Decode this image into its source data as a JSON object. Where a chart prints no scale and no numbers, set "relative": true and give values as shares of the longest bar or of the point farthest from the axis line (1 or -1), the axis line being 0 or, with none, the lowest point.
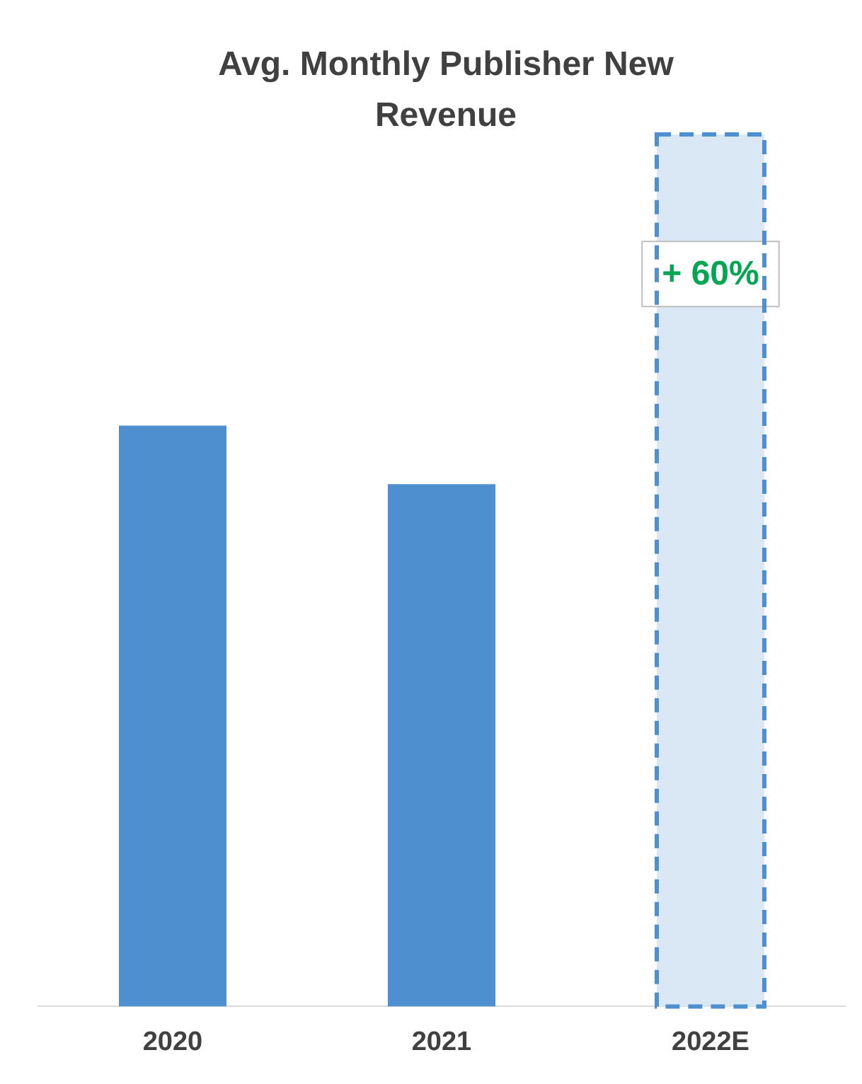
{
  "chart_data": {
    "type": "bar",
    "title": "Avg. Monthly Publisher New Revenue",
    "relative": true,
    "categories": [
      "2020",
      "2021",
      "2022E"
    ],
    "series": [
      {
        "color": "#4e8fd0",
        "values": [
          0.666,
          0.599,
          null
        ]
      },
      {
        "color": "#dae7f5",
        "values": [
          null,
          null,
          1
        ],
        "line_style": "dashed"
      }
    ],
    "annotations": [
      "+ 60%"
    ],
    "grid": false,
    "legend": false
  }
}
